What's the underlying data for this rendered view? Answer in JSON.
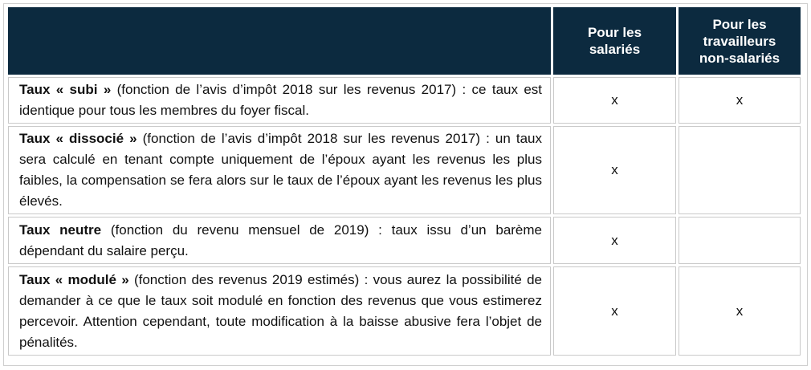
{
  "header": {
    "col1": "",
    "col2": "Pour les salariés",
    "col3": "Pour les travailleurs non-salariés"
  },
  "rows": [
    {
      "title": "Taux « subi »",
      "text": " (fonction de l’avis d’impôt 2018 sur les revenus 2017) : ce taux est identique pour tous les membres du foyer fiscal.",
      "salaries": "x",
      "non_salaries": "x"
    },
    {
      "title": "Taux « dissocié »",
      "text": " (fonction de l’avis d’impôt 2018 sur les revenus 2017) : un taux sera calculé en tenant compte uniquement de l’époux ayant les revenus les plus faibles, la compensation se fera alors sur le taux de l’époux ayant les revenus les plus élevés.",
      "salaries": "x",
      "non_salaries": ""
    },
    {
      "title": "Taux neutre",
      "text": " (fonction du revenu mensuel de 2019) : taux issu d’un barème dépendant du salaire perçu.",
      "salaries": "x",
      "non_salaries": ""
    },
    {
      "title": "Taux « modulé »",
      "text": " (fonction des revenus 2019 estimés) : vous aurez la possibilité de demander à ce que le taux soit modulé en fonction des revenus que vous estimerez percevoir. Attention cependant, toute modification à la baisse abusive fera l’objet de pénalités.",
      "salaries": "x",
      "non_salaries": "x"
    }
  ]
}
